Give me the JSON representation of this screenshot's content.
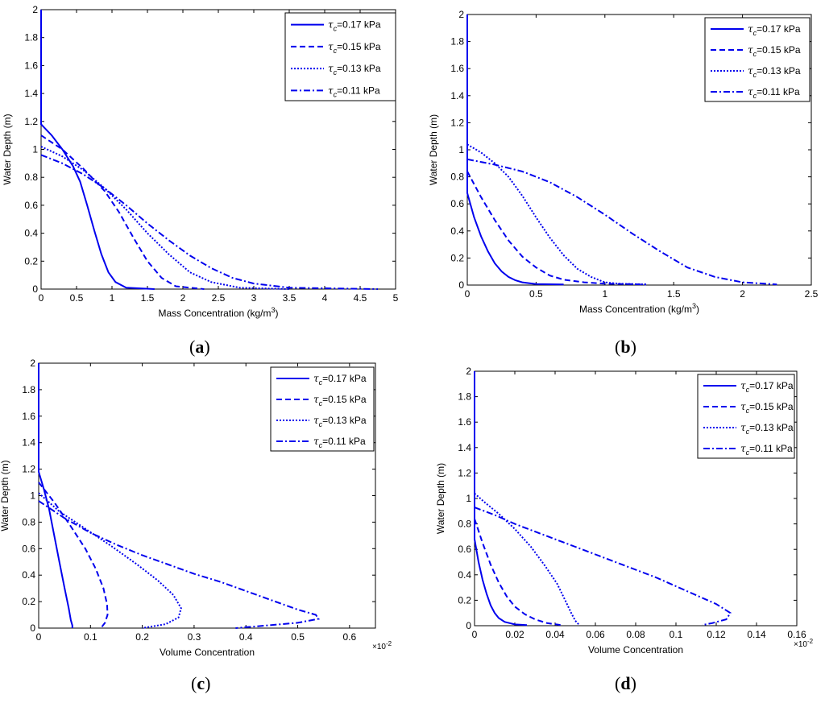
{
  "colors": {
    "series": "#0000ee",
    "axis": "#000000",
    "background": "#ffffff"
  },
  "legend_prefix": "τ",
  "legend_sub": "c",
  "chart_data": [
    {
      "id": "a",
      "label_open": "(",
      "label_letter": "a",
      "label_close": ")",
      "type": "line",
      "xlabel": "Mass Concentration (kg/m",
      "xlabel_sup": "3",
      "xlabel_tail": ")",
      "ylabel": "Water Depth (m)",
      "xlim": [
        0,
        5
      ],
      "ylim": [
        0,
        2
      ],
      "xticks": [
        0,
        0.5,
        1,
        1.5,
        2,
        2.5,
        3,
        3.5,
        4,
        4.5,
        5
      ],
      "xtick_labels": [
        "0",
        "0.5",
        "1",
        "1.5",
        "2",
        "2.5",
        "3",
        "3.5",
        "4",
        "4.5",
        "5"
      ],
      "yticks": [
        0,
        0.2,
        0.4,
        0.6,
        0.8,
        1,
        1.2,
        1.4,
        1.6,
        1.8,
        2
      ],
      "ytick_labels": [
        "0",
        "0.2",
        "0.4",
        "0.6",
        "0.8",
        "1",
        "1.2",
        "1.4",
        "1.6",
        "1.8",
        "2"
      ],
      "xexponent": "",
      "series": [
        {
          "name": "=0.17 kPa",
          "style": "solid",
          "points": [
            [
              0,
              2
            ],
            [
              0,
              1.18
            ],
            [
              0.15,
              1.1
            ],
            [
              0.3,
              1.0
            ],
            [
              0.45,
              0.88
            ],
            [
              0.55,
              0.77
            ],
            [
              0.65,
              0.6
            ],
            [
              0.75,
              0.42
            ],
            [
              0.85,
              0.25
            ],
            [
              0.95,
              0.12
            ],
            [
              1.05,
              0.05
            ],
            [
              1.2,
              0.01
            ],
            [
              1.6,
              0
            ]
          ]
        },
        {
          "name": "=0.15 kPa",
          "style": "dashed",
          "points": [
            [
              0,
              1.1
            ],
            [
              0.3,
              1.0
            ],
            [
              0.6,
              0.86
            ],
            [
              0.9,
              0.7
            ],
            [
              1.1,
              0.55
            ],
            [
              1.3,
              0.37
            ],
            [
              1.5,
              0.2
            ],
            [
              1.7,
              0.08
            ],
            [
              1.9,
              0.02
            ],
            [
              2.3,
              0
            ]
          ]
        },
        {
          "name": "=0.13 kPa",
          "style": "dotted",
          "points": [
            [
              0,
              1.02
            ],
            [
              0.3,
              0.95
            ],
            [
              0.6,
              0.85
            ],
            [
              0.9,
              0.72
            ],
            [
              1.2,
              0.57
            ],
            [
              1.5,
              0.4
            ],
            [
              1.8,
              0.25
            ],
            [
              2.1,
              0.12
            ],
            [
              2.4,
              0.05
            ],
            [
              2.8,
              0.01
            ],
            [
              3.5,
              0
            ]
          ]
        },
        {
          "name": "=0.11 kPa",
          "style": "dashdot",
          "points": [
            [
              0,
              0.96
            ],
            [
              0.3,
              0.9
            ],
            [
              0.6,
              0.82
            ],
            [
              0.9,
              0.72
            ],
            [
              1.2,
              0.6
            ],
            [
              1.5,
              0.47
            ],
            [
              1.8,
              0.35
            ],
            [
              2.1,
              0.24
            ],
            [
              2.4,
              0.15
            ],
            [
              2.7,
              0.08
            ],
            [
              3.0,
              0.04
            ],
            [
              3.5,
              0.01
            ],
            [
              4.75,
              0
            ]
          ]
        }
      ]
    },
    {
      "id": "b",
      "label_open": "(",
      "label_letter": "b",
      "label_close": ")",
      "type": "line",
      "xlabel": "Mass Concentration (kg/m",
      "xlabel_sup": "3",
      "xlabel_tail": ")",
      "ylabel": "Water Depth (m)",
      "xlim": [
        0,
        2.5
      ],
      "ylim": [
        0,
        2
      ],
      "xticks": [
        0,
        0.5,
        1,
        1.5,
        2,
        2.5
      ],
      "xtick_labels": [
        "0",
        "0.5",
        "1",
        "1.5",
        "2",
        "2.5"
      ],
      "yticks": [
        0,
        0.2,
        0.4,
        0.6,
        0.8,
        1,
        1.2,
        1.4,
        1.6,
        1.8,
        2
      ],
      "ytick_labels": [
        "0",
        "0.2",
        "0.4",
        "0.6",
        "0.8",
        "1",
        "1.2",
        "1.4",
        "1.6",
        "1.8",
        "2"
      ],
      "xexponent": "",
      "series": [
        {
          "name": "=0.17 kPa",
          "style": "solid",
          "points": [
            [
              0,
              2
            ],
            [
              0,
              0.68
            ],
            [
              0.05,
              0.5
            ],
            [
              0.1,
              0.36
            ],
            [
              0.15,
              0.25
            ],
            [
              0.2,
              0.16
            ],
            [
              0.25,
              0.1
            ],
            [
              0.3,
              0.06
            ],
            [
              0.35,
              0.035
            ],
            [
              0.4,
              0.02
            ],
            [
              0.5,
              0.008
            ],
            [
              0.7,
              0.005
            ]
          ]
        },
        {
          "name": "=0.15 kPa",
          "style": "dashed",
          "points": [
            [
              0,
              0.84
            ],
            [
              0.1,
              0.65
            ],
            [
              0.2,
              0.48
            ],
            [
              0.3,
              0.33
            ],
            [
              0.4,
              0.21
            ],
            [
              0.5,
              0.13
            ],
            [
              0.6,
              0.07
            ],
            [
              0.7,
              0.04
            ],
            [
              0.85,
              0.02
            ],
            [
              1.0,
              0.01
            ],
            [
              1.3,
              0.005
            ]
          ]
        },
        {
          "name": "=0.13 kPa",
          "style": "dotted",
          "points": [
            [
              0,
              1.04
            ],
            [
              0.1,
              0.98
            ],
            [
              0.2,
              0.9
            ],
            [
              0.3,
              0.8
            ],
            [
              0.4,
              0.66
            ],
            [
              0.5,
              0.5
            ],
            [
              0.6,
              0.35
            ],
            [
              0.7,
              0.22
            ],
            [
              0.8,
              0.12
            ],
            [
              0.9,
              0.06
            ],
            [
              1.0,
              0.02
            ],
            [
              1.1,
              0.01
            ],
            [
              1.3,
              0.005
            ]
          ]
        },
        {
          "name": "=0.11 kPa",
          "style": "dashdot",
          "points": [
            [
              0,
              0.93
            ],
            [
              0.2,
              0.89
            ],
            [
              0.4,
              0.84
            ],
            [
              0.6,
              0.76
            ],
            [
              0.8,
              0.65
            ],
            [
              1.0,
              0.52
            ],
            [
              1.2,
              0.38
            ],
            [
              1.4,
              0.25
            ],
            [
              1.6,
              0.13
            ],
            [
              1.8,
              0.06
            ],
            [
              2.0,
              0.02
            ],
            [
              2.25,
              0.005
            ]
          ]
        }
      ]
    },
    {
      "id": "c",
      "label_open": "(",
      "label_letter": "c",
      "label_close": ")",
      "type": "line",
      "xlabel": "Volume Concentration",
      "xlabel_sup": "",
      "xlabel_tail": "",
      "ylabel": "Water Depth (m)",
      "xlim": [
        0,
        0.65
      ],
      "ylim": [
        0,
        2
      ],
      "xticks": [
        0,
        0.1,
        0.2,
        0.3,
        0.4,
        0.5,
        0.6
      ],
      "xtick_labels": [
        "0",
        "0.1",
        "0.2",
        "0.3",
        "0.4",
        "0.5",
        "0.6"
      ],
      "yticks": [
        0,
        0.2,
        0.4,
        0.6,
        0.8,
        1,
        1.2,
        1.4,
        1.6,
        1.8,
        2
      ],
      "ytick_labels": [
        "0",
        "0.2",
        "0.4",
        "0.6",
        "0.8",
        "1",
        "1.2",
        "1.4",
        "1.6",
        "1.8",
        "2"
      ],
      "xexponent": "×10",
      "xexponent_sup": "-2",
      "series": [
        {
          "name": "=0.17 kPa",
          "style": "solid",
          "points": [
            [
              0,
              2
            ],
            [
              0,
              1.18
            ],
            [
              0.01,
              1.05
            ],
            [
              0.02,
              0.9
            ],
            [
              0.03,
              0.7
            ],
            [
              0.04,
              0.5
            ],
            [
              0.05,
              0.3
            ],
            [
              0.058,
              0.15
            ],
            [
              0.062,
              0.06
            ],
            [
              0.065,
              0.02
            ],
            [
              0.065,
              0
            ]
          ]
        },
        {
          "name": "=0.15 kPa",
          "style": "dashed",
          "points": [
            [
              0,
              1.1
            ],
            [
              0.03,
              0.95
            ],
            [
              0.06,
              0.78
            ],
            [
              0.09,
              0.6
            ],
            [
              0.11,
              0.45
            ],
            [
              0.125,
              0.3
            ],
            [
              0.132,
              0.18
            ],
            [
              0.133,
              0.1
            ],
            [
              0.128,
              0.04
            ],
            [
              0.12,
              0
            ]
          ]
        },
        {
          "name": "=0.13 kPa",
          "style": "dotted",
          "points": [
            [
              0,
              1.02
            ],
            [
              0.04,
              0.88
            ],
            [
              0.09,
              0.75
            ],
            [
              0.14,
              0.62
            ],
            [
              0.19,
              0.48
            ],
            [
              0.23,
              0.36
            ],
            [
              0.26,
              0.25
            ],
            [
              0.275,
              0.15
            ],
            [
              0.27,
              0.08
            ],
            [
              0.245,
              0.03
            ],
            [
              0.2,
              0
            ]
          ]
        },
        {
          "name": "=0.11 kPa",
          "style": "dashdot",
          "points": [
            [
              0,
              0.96
            ],
            [
              0.05,
              0.83
            ],
            [
              0.1,
              0.72
            ],
            [
              0.15,
              0.63
            ],
            [
              0.2,
              0.55
            ],
            [
              0.25,
              0.48
            ],
            [
              0.3,
              0.41
            ],
            [
              0.35,
              0.35
            ],
            [
              0.4,
              0.28
            ],
            [
              0.45,
              0.21
            ],
            [
              0.5,
              0.14
            ],
            [
              0.535,
              0.1
            ],
            [
              0.54,
              0.07
            ],
            [
              0.5,
              0.04
            ],
            [
              0.44,
              0.02
            ],
            [
              0.38,
              0
            ]
          ]
        }
      ]
    },
    {
      "id": "d",
      "label_open": "(",
      "label_letter": "d",
      "label_close": ")",
      "type": "line",
      "xlabel": "Volume Concentration",
      "xlabel_sup": "",
      "xlabel_tail": "",
      "ylabel": "Water Depth (m)",
      "xlim": [
        0,
        0.16
      ],
      "ylim": [
        0,
        2
      ],
      "xticks": [
        0,
        0.02,
        0.04,
        0.06,
        0.08,
        0.1,
        0.12,
        0.14,
        0.16
      ],
      "xtick_labels": [
        "0",
        "0.02",
        "0.04",
        "0.06",
        "0.08",
        "0.1",
        "0.12",
        "0.14",
        "0.16"
      ],
      "yticks": [
        0,
        0.2,
        0.4,
        0.6,
        0.8,
        1,
        1.2,
        1.4,
        1.6,
        1.8,
        2
      ],
      "ytick_labels": [
        "0",
        "0.2",
        "0.4",
        "0.6",
        "0.8",
        "1",
        "1.2",
        "1.4",
        "1.6",
        "1.8",
        "2"
      ],
      "xexponent": "×10",
      "xexponent_sup": "-2",
      "series": [
        {
          "name": "=0.17 kPa",
          "style": "solid",
          "points": [
            [
              0,
              2
            ],
            [
              0,
              0.68
            ],
            [
              0.002,
              0.5
            ],
            [
              0.004,
              0.36
            ],
            [
              0.006,
              0.25
            ],
            [
              0.008,
              0.16
            ],
            [
              0.01,
              0.1
            ],
            [
              0.012,
              0.06
            ],
            [
              0.015,
              0.03
            ],
            [
              0.02,
              0.01
            ],
            [
              0.026,
              0.005
            ]
          ]
        },
        {
          "name": "=0.15 kPa",
          "style": "dashed",
          "points": [
            [
              0,
              0.84
            ],
            [
              0.004,
              0.65
            ],
            [
              0.008,
              0.48
            ],
            [
              0.012,
              0.34
            ],
            [
              0.016,
              0.23
            ],
            [
              0.02,
              0.15
            ],
            [
              0.025,
              0.09
            ],
            [
              0.03,
              0.05
            ],
            [
              0.036,
              0.02
            ],
            [
              0.043,
              0.005
            ]
          ]
        },
        {
          "name": "=0.13 kPa",
          "style": "dotted",
          "points": [
            [
              0,
              1.04
            ],
            [
              0.005,
              0.97
            ],
            [
              0.012,
              0.88
            ],
            [
              0.02,
              0.76
            ],
            [
              0.028,
              0.62
            ],
            [
              0.035,
              0.47
            ],
            [
              0.041,
              0.33
            ],
            [
              0.045,
              0.2
            ],
            [
              0.048,
              0.1
            ],
            [
              0.05,
              0.04
            ],
            [
              0.052,
              0.005
            ]
          ]
        },
        {
          "name": "=0.11 kPa",
          "style": "dashdot",
          "points": [
            [
              0,
              0.93
            ],
            [
              0.01,
              0.87
            ],
            [
              0.02,
              0.8
            ],
            [
              0.03,
              0.74
            ],
            [
              0.04,
              0.68
            ],
            [
              0.05,
              0.62
            ],
            [
              0.06,
              0.56
            ],
            [
              0.07,
              0.5
            ],
            [
              0.08,
              0.44
            ],
            [
              0.09,
              0.38
            ],
            [
              0.1,
              0.31
            ],
            [
              0.11,
              0.24
            ],
            [
              0.12,
              0.17
            ],
            [
              0.127,
              0.1
            ],
            [
              0.125,
              0.05
            ],
            [
              0.118,
              0.02
            ],
            [
              0.113,
              0.005
            ]
          ]
        }
      ]
    }
  ]
}
